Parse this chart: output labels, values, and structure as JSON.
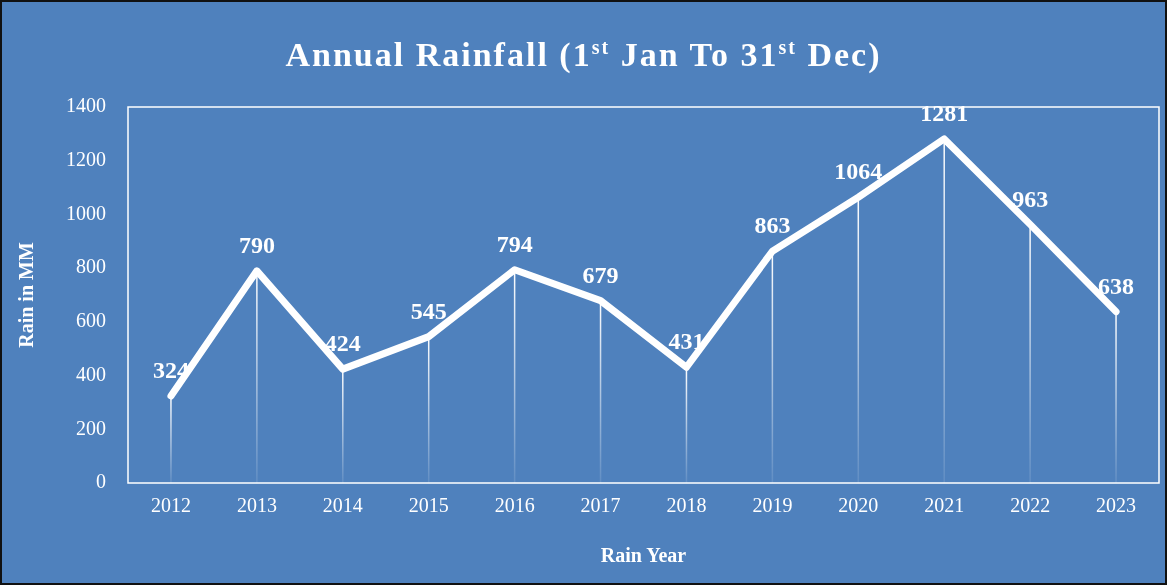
{
  "chart_data": {
    "type": "line",
    "title": "Annual Rainfall (1$^{st}$ Jan To 31$^{st}$ Dec)",
    "xlabel": "Rain Year",
    "ylabel": "Rain in MM",
    "categories": [
      "2012",
      "2013",
      "2014",
      "2015",
      "2016",
      "2017",
      "2018",
      "2019",
      "2020",
      "2021",
      "2022",
      "2023"
    ],
    "series": [
      {
        "color": "#ffffff",
        "values": [
          324,
          790,
          424,
          545,
          794,
          679,
          431,
          863,
          1064,
          1281,
          963,
          638
        ]
      }
    ],
    "ylim": [
      0,
      1400
    ],
    "yticks": [
      0,
      200,
      400,
      600,
      800,
      1000,
      1200,
      1400
    ],
    "grid": "x",
    "legend": false,
    "marker": "none",
    "line_style": "solid",
    "data_labels": true
  }
}
